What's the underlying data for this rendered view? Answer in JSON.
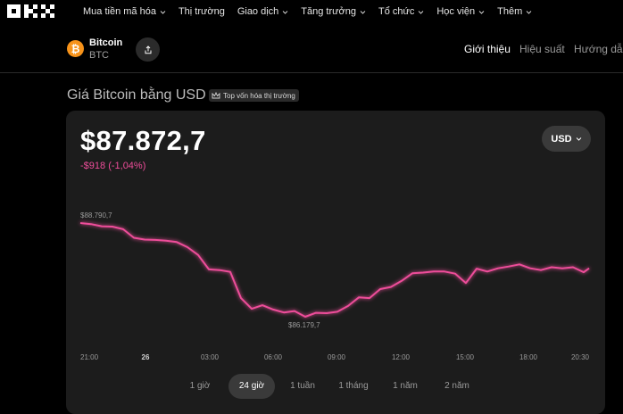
{
  "nav": {
    "logo": "OKX",
    "items": [
      {
        "label": "Mua tiền mã hóa",
        "has_menu": true
      },
      {
        "label": "Thị trường",
        "has_menu": false
      },
      {
        "label": "Giao dịch",
        "has_menu": true
      },
      {
        "label": "Tăng trưởng",
        "has_menu": true
      },
      {
        "label": "Tổ chức",
        "has_menu": true
      },
      {
        "label": "Học viện",
        "has_menu": true
      },
      {
        "label": "Thêm",
        "has_menu": true
      }
    ]
  },
  "coin": {
    "icon_glyph": "₿",
    "name": "Bitcoin",
    "symbol": "BTC",
    "accent_color": "#f7931a"
  },
  "tabs": [
    {
      "label": "Giới thiệu",
      "active": true
    },
    {
      "label": "Hiệu suất",
      "active": false
    },
    {
      "label": "Hướng dẫn",
      "active": false
    }
  ],
  "section": {
    "title": "Giá Bitcoin bằng USD",
    "badge": "Top vốn hóa thị trường",
    "badge_icon": "crown-icon"
  },
  "price": {
    "value": "$87.872,7",
    "change": "-$918 (-1,04%)",
    "change_color": "#ee4d9a",
    "currency": "USD"
  },
  "chart_data": {
    "type": "line",
    "line_color": "#ee4d9a",
    "max_label": "$88.790,7",
    "min_label": "$86.179,7",
    "x_ticks": [
      {
        "label": "21:00",
        "bold": false
      },
      {
        "label": "26",
        "bold": true
      },
      {
        "label": "03:00",
        "bold": false
      },
      {
        "label": "06:00",
        "bold": false
      },
      {
        "label": "09:00",
        "bold": false
      },
      {
        "label": "12:00",
        "bold": false
      },
      {
        "label": "15:00",
        "bold": false
      },
      {
        "label": "18:00",
        "bold": false
      },
      {
        "label": "20:30",
        "bold": false
      }
    ],
    "x": [
      0,
      0.5,
      1,
      1.5,
      2,
      2.5,
      3,
      3.5,
      4,
      4.5,
      5,
      5.5,
      6,
      6.5,
      7,
      7.5,
      8,
      8.5,
      9,
      9.5,
      10,
      10.5,
      11,
      11.5,
      12,
      12.5,
      13,
      13.5,
      14,
      14.5,
      15,
      15.5,
      16,
      16.5,
      17,
      17.5,
      18,
      18.5,
      19,
      19.5,
      20,
      20.5,
      21,
      21.5,
      22,
      22.5,
      23,
      23.5,
      23.75
    ],
    "y": [
      88790,
      88760,
      88700,
      88690,
      88620,
      88380,
      88330,
      88320,
      88300,
      88260,
      88120,
      87900,
      87500,
      87480,
      87430,
      86700,
      86400,
      86500,
      86380,
      86300,
      86340,
      86180,
      86290,
      86280,
      86320,
      86480,
      86720,
      86700,
      86950,
      87010,
      87180,
      87390,
      87410,
      87440,
      87440,
      87380,
      87120,
      87520,
      87440,
      87530,
      87580,
      87640,
      87530,
      87480,
      87560,
      87530,
      87560,
      87420,
      87530
    ],
    "y_range": [
      86179.7,
      88790.7
    ]
  },
  "ranges": [
    {
      "label": "1 giờ",
      "active": false
    },
    {
      "label": "24 giờ",
      "active": true
    },
    {
      "label": "1 tuần",
      "active": false
    },
    {
      "label": "1 tháng",
      "active": false
    },
    {
      "label": "1 năm",
      "active": false
    },
    {
      "label": "2 năm",
      "active": false
    }
  ]
}
